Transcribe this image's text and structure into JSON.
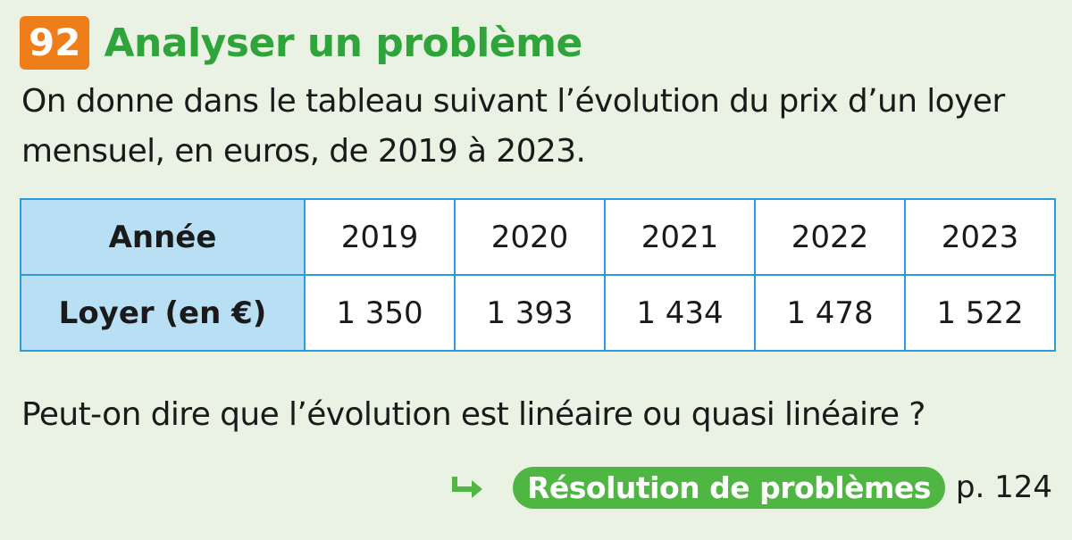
{
  "exercise": {
    "number": "92",
    "title": "Analyser un problème"
  },
  "intro": {
    "text": "On donne dans le tableau suivant l’évolution du prix d’un loyer mensuel, en euros, de 2019 à 2023."
  },
  "table": {
    "row_headers": [
      "Année",
      "Loyer (en €)"
    ],
    "years": [
      "2019",
      "2020",
      "2021",
      "2022",
      "2023"
    ],
    "rents": [
      "1 350",
      "1 393",
      "1 434",
      "1 478",
      "1 522"
    ]
  },
  "question": {
    "text": "Peut-on dire que l’évolution est linéaire ou quasi linéaire ?"
  },
  "reference": {
    "label": "Résolution de problèmes",
    "page": "p. 124"
  },
  "colors": {
    "background": "#eaf2e3",
    "number_badge": "#ef7d1a",
    "title_green": "#2fa43a",
    "pill_green": "#4fb543",
    "table_border": "#2c9ad6",
    "table_header": "#b9dff4"
  },
  "icons": {
    "reference_arrow": "arrow-turn-right-icon"
  }
}
